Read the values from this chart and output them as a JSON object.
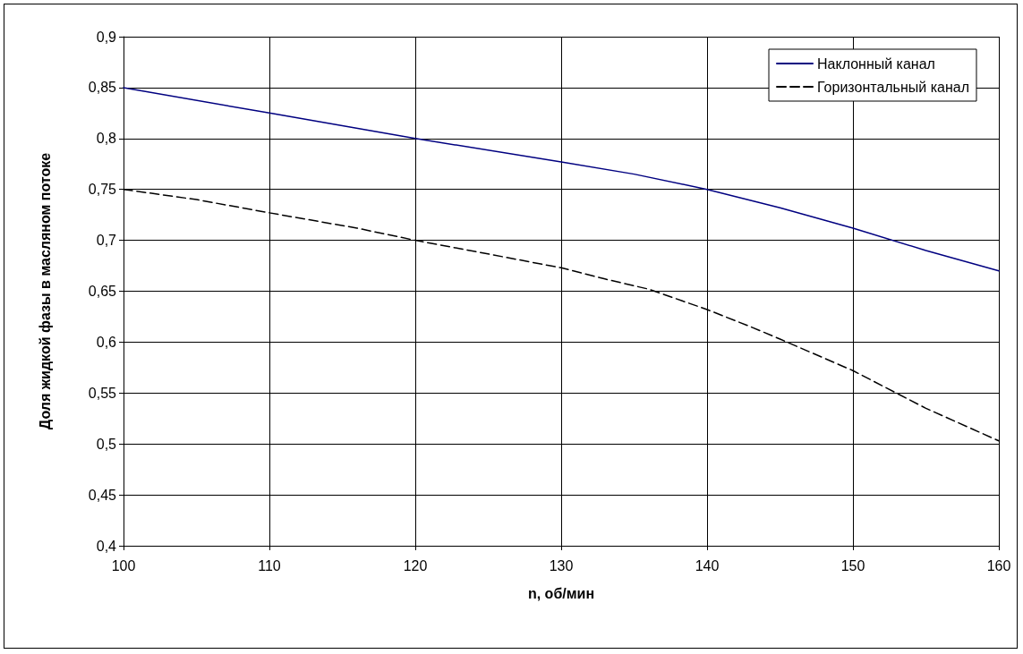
{
  "chart_data": {
    "type": "line",
    "xlabel": "n, об/мин",
    "ylabel": "Доля жидкой фазы в масляном потоке",
    "series": [
      {
        "name": "Наклонный канал",
        "color": "#000080",
        "line_style": "solid",
        "x": [
          100,
          110,
          120,
          130,
          135,
          140,
          145,
          150,
          155,
          160
        ],
        "values": [
          0.85,
          0.825,
          0.8,
          0.777,
          0.765,
          0.75,
          0.732,
          0.712,
          0.69,
          0.67
        ]
      },
      {
        "name": "Горизонтальный канал",
        "color": "#000000",
        "line_style": "dashed",
        "x": [
          100,
          105,
          110,
          116,
          120,
          123,
          130,
          133,
          136,
          140,
          143,
          145,
          150,
          155,
          160
        ],
        "values": [
          0.75,
          0.74,
          0.727,
          0.712,
          0.7,
          0.692,
          0.673,
          0.662,
          0.652,
          0.632,
          0.615,
          0.603,
          0.572,
          0.535,
          0.503
        ]
      }
    ],
    "xlim": [
      100,
      160
    ],
    "xticks": [
      100,
      110,
      120,
      130,
      140,
      150,
      160
    ],
    "ylim": [
      0.4,
      0.9
    ],
    "yticks": [
      {
        "value": 0.4,
        "label": "0,4"
      },
      {
        "value": 0.45,
        "label": "0,45"
      },
      {
        "value": 0.5,
        "label": "0,5"
      },
      {
        "value": 0.55,
        "label": "0,55"
      },
      {
        "value": 0.6,
        "label": "0,6"
      },
      {
        "value": 0.65,
        "label": "0,65"
      },
      {
        "value": 0.7,
        "label": "0,7"
      },
      {
        "value": 0.75,
        "label": "0,75"
      },
      {
        "value": 0.8,
        "label": "0,8"
      },
      {
        "value": 0.85,
        "label": "0,85"
      },
      {
        "value": 0.9,
        "label": "0,9"
      }
    ],
    "grid": true,
    "legend": "top right",
    "marker": "none"
  }
}
